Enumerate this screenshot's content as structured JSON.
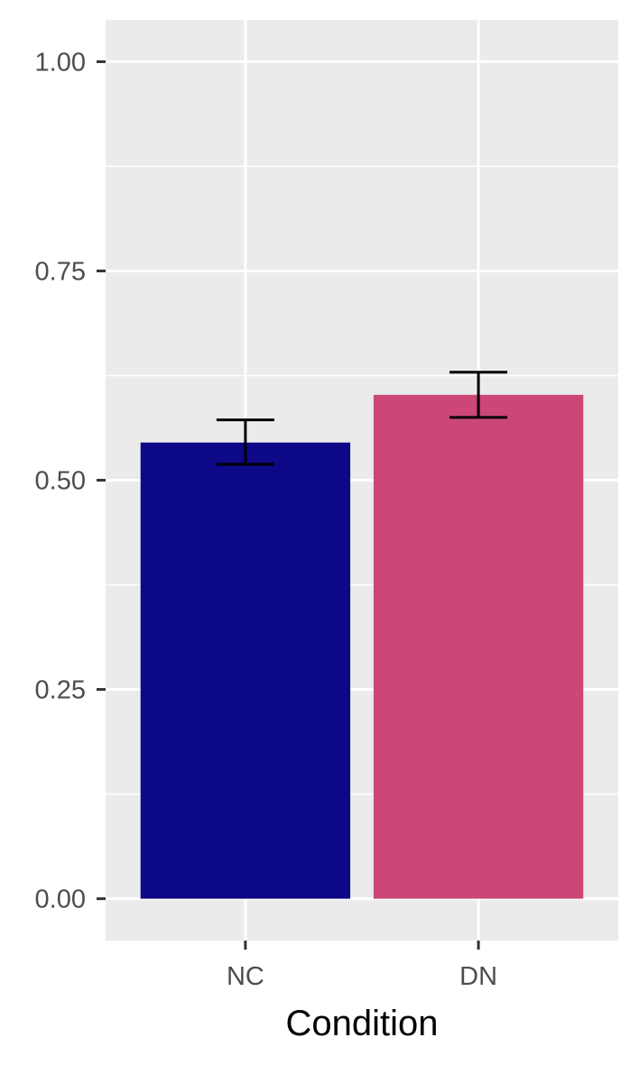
{
  "chart_data": {
    "type": "bar",
    "title": "",
    "xlabel": "Condition",
    "ylabel": "",
    "categories": [
      "NC",
      "DN"
    ],
    "values": [
      0.545,
      0.602
    ],
    "error_bars": [
      {
        "lower": 0.519,
        "upper": 0.572
      },
      {
        "lower": 0.575,
        "upper": 0.629
      }
    ],
    "ylim": [
      -0.05,
      1.05
    ],
    "yticks": [
      0.0,
      0.25,
      0.5,
      0.75,
      1.0
    ],
    "ytick_labels": [
      "0.00",
      "0.25",
      "0.50",
      "0.75",
      "1.00"
    ],
    "grid": true,
    "legend": "none",
    "colors": {
      "bars": [
        "#0d0887",
        "#cc4778"
      ],
      "panel_background": "#ebebeb",
      "grid": "#ffffff",
      "error_bar": "#000000"
    }
  }
}
